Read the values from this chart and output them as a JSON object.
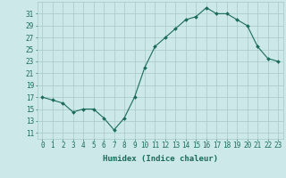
{
  "x": [
    0,
    1,
    2,
    3,
    4,
    5,
    6,
    7,
    8,
    9,
    10,
    11,
    12,
    13,
    14,
    15,
    16,
    17,
    18,
    19,
    20,
    21,
    22,
    23
  ],
  "y": [
    17,
    16.5,
    16,
    14.5,
    15,
    15,
    13.5,
    11.5,
    13.5,
    17,
    22,
    25.5,
    27,
    28.5,
    30,
    30.5,
    32,
    31,
    31,
    30,
    29,
    25.5,
    23.5,
    23
  ],
  "line_color": "#1a6b5a",
  "marker_color": "#1a6b5a",
  "bg_color": "#cce8e8",
  "grid_color": "#a8c8c8",
  "xlabel": "Humidex (Indice chaleur)",
  "ylabel_ticks": [
    11,
    13,
    15,
    17,
    19,
    21,
    23,
    25,
    27,
    29,
    31
  ],
  "ylim": [
    10.0,
    33.0
  ],
  "xlim": [
    -0.5,
    23.5
  ],
  "xlabel_color": "#1a6b5a",
  "tick_color": "#1a6b5a",
  "font_size": 5.5,
  "xlabel_fontsize": 6.5
}
